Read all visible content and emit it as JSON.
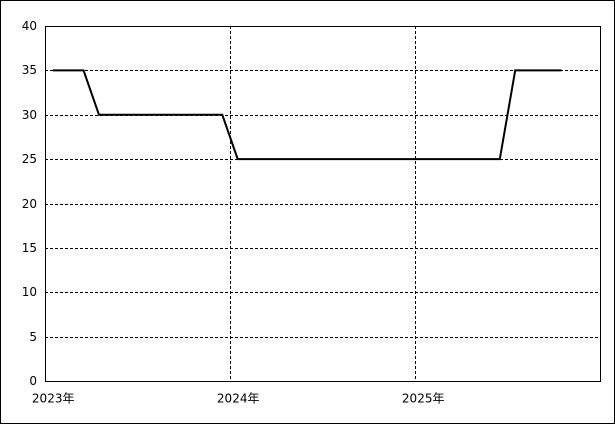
{
  "chart_data": {
    "type": "line",
    "categories": [
      "2023年",
      null,
      null,
      null,
      null,
      null,
      null,
      null,
      null,
      null,
      null,
      null,
      "2024年",
      null,
      null,
      null,
      null,
      null,
      null,
      null,
      null,
      null,
      null,
      null,
      "2025年",
      null,
      null,
      null,
      null,
      null,
      null,
      null,
      null,
      null,
      null,
      null
    ],
    "values": [
      35,
      35,
      35,
      30,
      30,
      30,
      30,
      30,
      30,
      30,
      30,
      30,
      25,
      25,
      25,
      25,
      25,
      25,
      25,
      25,
      25,
      25,
      25,
      25,
      25,
      25,
      25,
      25,
      25,
      25,
      35,
      35,
      35,
      35,
      null,
      null
    ],
    "color": "#000000",
    "ylim": [
      0,
      40
    ],
    "yticks": [
      0,
      5,
      10,
      15,
      20,
      25,
      30,
      35,
      40
    ],
    "grid": true
  }
}
